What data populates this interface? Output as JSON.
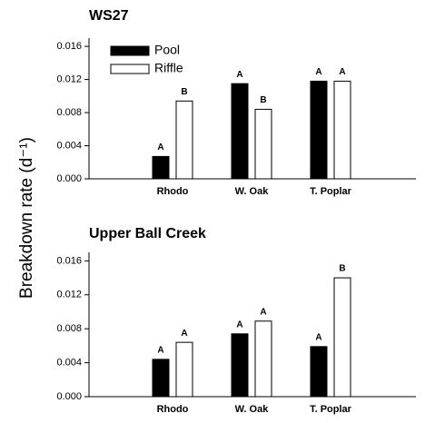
{
  "ylabel": "Breakdown rate (d⁻¹)",
  "chart_data": [
    {
      "type": "bar",
      "title": "WS27",
      "categories": [
        "Rhodo",
        "W. Oak",
        "T. Poplar"
      ],
      "series": [
        {
          "name": "Pool",
          "color": "#000000",
          "values": [
            0.0027,
            0.0115,
            0.0118
          ],
          "letters": [
            "A",
            "A",
            "A"
          ]
        },
        {
          "name": "Riffle",
          "color": "#ffffff",
          "values": [
            0.0094,
            0.0084,
            0.0118
          ],
          "letters": [
            "B",
            "B",
            "A"
          ]
        }
      ],
      "ylim": [
        0,
        0.017
      ],
      "yticks": [
        {
          "value": 0,
          "label": "0.000"
        },
        0.004,
        0.008,
        0.012,
        0.016
      ],
      "legend": "upper left"
    },
    {
      "type": "bar",
      "title": "Upper Ball Creek",
      "categories": [
        "Rhodo",
        "W. Oak",
        "T. Poplar"
      ],
      "series": [
        {
          "name": "Pool",
          "color": "#000000",
          "values": [
            0.0044,
            0.0074,
            0.0059
          ],
          "letters": [
            "A",
            "A",
            "A"
          ]
        },
        {
          "name": "Riffle",
          "color": "#ffffff",
          "values": [
            0.0064,
            0.0089,
            0.014
          ],
          "letters": [
            "A",
            "A",
            "B"
          ]
        }
      ],
      "ylim": [
        0,
        0.017
      ],
      "yticks": [
        {
          "value": 0,
          "label": "0.000"
        },
        0.004,
        0.008,
        0.012,
        0.016
      ]
    }
  ]
}
